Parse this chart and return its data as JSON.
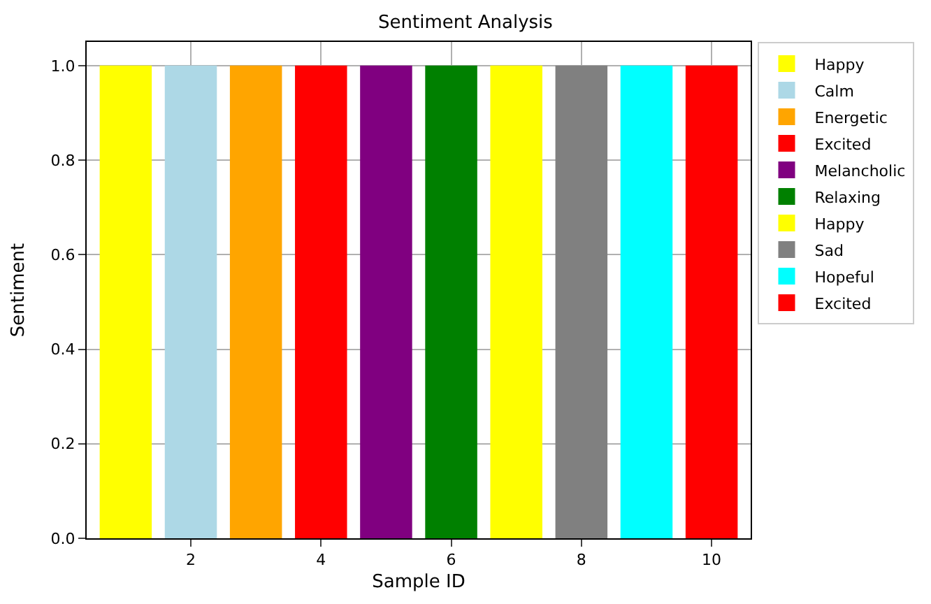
{
  "chart_data": {
    "type": "bar",
    "title": "Sentiment Analysis",
    "xlabel": "Sample ID",
    "ylabel": "Sentiment",
    "series": [
      {
        "name": "Happy",
        "color": "#ffff00",
        "x": [
          1
        ],
        "values": [
          1.0
        ]
      },
      {
        "name": "Calm",
        "color": "#add8e6",
        "x": [
          2
        ],
        "values": [
          1.0
        ]
      },
      {
        "name": "Energetic",
        "color": "#ffa500",
        "x": [
          3
        ],
        "values": [
          1.0
        ]
      },
      {
        "name": "Excited",
        "color": "#ff0000",
        "x": [
          4
        ],
        "values": [
          1.0
        ]
      },
      {
        "name": "Melancholic",
        "color": "#800080",
        "x": [
          5
        ],
        "values": [
          1.0
        ]
      },
      {
        "name": "Relaxing",
        "color": "#008000",
        "x": [
          6
        ],
        "values": [
          1.0
        ]
      },
      {
        "name": "Happy",
        "color": "#ffff00",
        "x": [
          7
        ],
        "values": [
          1.0
        ]
      },
      {
        "name": "Sad",
        "color": "#808080",
        "x": [
          8
        ],
        "values": [
          1.0
        ]
      },
      {
        "name": "Hopeful",
        "color": "#00ffff",
        "x": [
          9
        ],
        "values": [
          1.0
        ]
      },
      {
        "name": "Excited",
        "color": "#ff0000",
        "x": [
          10
        ],
        "values": [
          1.0
        ]
      }
    ],
    "xlim": [
      0.4,
      10.6
    ],
    "xticks": [
      2,
      4,
      6,
      8,
      10
    ],
    "ylim": [
      0,
      1.05
    ],
    "yticks": [
      {
        "value": 0,
        "label": "0.0"
      },
      {
        "value": 0.2,
        "label": "0.2"
      },
      {
        "value": 0.4,
        "label": "0.4"
      },
      {
        "value": 0.6,
        "label": "0.6"
      },
      {
        "value": 0.8,
        "label": "0.8"
      },
      {
        "value": 1.0,
        "label": "1.0"
      }
    ],
    "grid": true,
    "legend": "top right"
  }
}
